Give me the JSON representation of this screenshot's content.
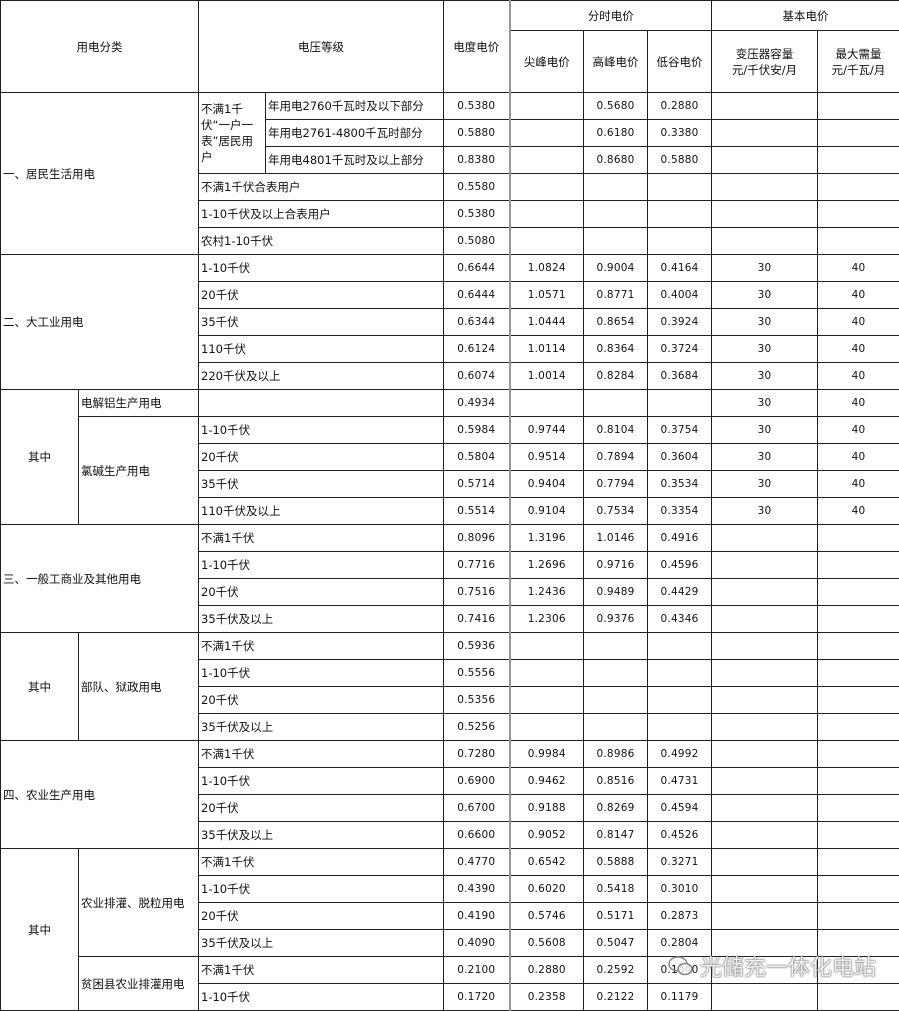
{
  "header": {
    "category": "用电分类",
    "voltage": "电压等级",
    "energy_price": "电度电价",
    "tou_price": "分时电价",
    "sharp_peak": "尖峰电价",
    "peak": "高峰电价",
    "valley": "低谷电价",
    "basic_price": "基本电价",
    "capacity_line1": "变压器容量",
    "capacity_line2": "元/千伏安/月",
    "demand_line1": "最大需量",
    "demand_line2": "元/千瓦/月"
  },
  "groups": [
    {
      "type": "main",
      "label": "一、居民生活用电",
      "parts": [
        {
          "label": "不满1千伏“一户一表”居民用户",
          "rows": [
            {
              "voltage": "年用电2760千瓦时及以下部分",
              "energy": "0.5380",
              "sharp": "",
              "peak": "0.5680",
              "valley": "0.2880",
              "capacity": "",
              "demand": ""
            },
            {
              "voltage": "年用电2761-4800千瓦时部分",
              "energy": "0.5880",
              "sharp": "",
              "peak": "0.6180",
              "valley": "0.3380",
              "capacity": "",
              "demand": ""
            },
            {
              "voltage": "年用电4801千瓦时及以上部分",
              "energy": "0.8380",
              "sharp": "",
              "peak": "0.8680",
              "valley": "0.5880",
              "capacity": "",
              "demand": ""
            }
          ]
        },
        {
          "rows": [
            {
              "voltage": "不满1千伏合表用户",
              "energy": "0.5580",
              "sharp": "",
              "peak": "",
              "valley": "",
              "capacity": "",
              "demand": ""
            }
          ]
        },
        {
          "rows": [
            {
              "voltage": "1-10千伏及以上合表用户",
              "energy": "0.5380",
              "sharp": "",
              "peak": "",
              "valley": "",
              "capacity": "",
              "demand": ""
            }
          ]
        },
        {
          "rows": [
            {
              "voltage": "农村1-10千伏",
              "energy": "0.5080",
              "sharp": "",
              "peak": "",
              "valley": "",
              "capacity": "",
              "demand": ""
            }
          ]
        }
      ]
    },
    {
      "type": "main",
      "label": "二、大工业用电",
      "parts": [
        {
          "rows": [
            {
              "voltage": "1-10千伏",
              "energy": "0.6644",
              "sharp": "1.0824",
              "peak": "0.9004",
              "valley": "0.4164",
              "capacity": "30",
              "demand": "40"
            },
            {
              "voltage": "20千伏",
              "energy": "0.6444",
              "sharp": "1.0571",
              "peak": "0.8771",
              "valley": "0.4004",
              "capacity": "30",
              "demand": "40"
            },
            {
              "voltage": "35千伏",
              "energy": "0.6344",
              "sharp": "1.0444",
              "peak": "0.8654",
              "valley": "0.3924",
              "capacity": "30",
              "demand": "40"
            },
            {
              "voltage": "110千伏",
              "energy": "0.6124",
              "sharp": "1.0114",
              "peak": "0.8364",
              "valley": "0.3724",
              "capacity": "30",
              "demand": "40"
            },
            {
              "voltage": "220千伏及以上",
              "energy": "0.6074",
              "sharp": "1.0014",
              "peak": "0.8284",
              "valley": "0.3684",
              "capacity": "30",
              "demand": "40"
            }
          ]
        }
      ]
    },
    {
      "type": "sub",
      "label": "其中",
      "parts": [
        {
          "label": "电解铝生产用电",
          "rows": [
            {
              "voltage": "",
              "energy": "0.4934",
              "sharp": "",
              "peak": "",
              "valley": "",
              "capacity": "30",
              "demand": "40"
            }
          ]
        },
        {
          "label": "氯碱生产用电",
          "rows": [
            {
              "voltage": "1-10千伏",
              "energy": "0.5984",
              "sharp": "0.9744",
              "peak": "0.8104",
              "valley": "0.3754",
              "capacity": "30",
              "demand": "40"
            },
            {
              "voltage": "20千伏",
              "energy": "0.5804",
              "sharp": "0.9514",
              "peak": "0.7894",
              "valley": "0.3604",
              "capacity": "30",
              "demand": "40"
            },
            {
              "voltage": "35千伏",
              "energy": "0.5714",
              "sharp": "0.9404",
              "peak": "0.7794",
              "valley": "0.3534",
              "capacity": "30",
              "demand": "40"
            },
            {
              "voltage": "110千伏及以上",
              "energy": "0.5514",
              "sharp": "0.9104",
              "peak": "0.7534",
              "valley": "0.3354",
              "capacity": "30",
              "demand": "40"
            }
          ]
        }
      ]
    },
    {
      "type": "main",
      "label": "三、一般工商业及其他用电",
      "parts": [
        {
          "rows": [
            {
              "voltage": "不满1千伏",
              "energy": "0.8096",
              "sharp": "1.3196",
              "peak": "1.0146",
              "valley": "0.4916",
              "capacity": "",
              "demand": ""
            },
            {
              "voltage": "1-10千伏",
              "energy": "0.7716",
              "sharp": "1.2696",
              "peak": "0.9716",
              "valley": "0.4596",
              "capacity": "",
              "demand": ""
            },
            {
              "voltage": "20千伏",
              "energy": "0.7516",
              "sharp": "1.2436",
              "peak": "0.9489",
              "valley": "0.4429",
              "capacity": "",
              "demand": ""
            },
            {
              "voltage": "35千伏及以上",
              "energy": "0.7416",
              "sharp": "1.2306",
              "peak": "0.9376",
              "valley": "0.4346",
              "capacity": "",
              "demand": ""
            }
          ]
        }
      ]
    },
    {
      "type": "sub",
      "label": "其中",
      "parts": [
        {
          "label": "部队、狱政用电",
          "rows": [
            {
              "voltage": "不满1千伏",
              "energy": "0.5936",
              "sharp": "",
              "peak": "",
              "valley": "",
              "capacity": "",
              "demand": ""
            },
            {
              "voltage": "1-10千伏",
              "energy": "0.5556",
              "sharp": "",
              "peak": "",
              "valley": "",
              "capacity": "",
              "demand": ""
            },
            {
              "voltage": "20千伏",
              "energy": "0.5356",
              "sharp": "",
              "peak": "",
              "valley": "",
              "capacity": "",
              "demand": ""
            },
            {
              "voltage": "35千伏及以上",
              "energy": "0.5256",
              "sharp": "",
              "peak": "",
              "valley": "",
              "capacity": "",
              "demand": ""
            }
          ]
        }
      ]
    },
    {
      "type": "main",
      "label": "四、农业生产用电",
      "parts": [
        {
          "rows": [
            {
              "voltage": "不满1千伏",
              "energy": "0.7280",
              "sharp": "0.9984",
              "peak": "0.8986",
              "valley": "0.4992",
              "capacity": "",
              "demand": ""
            },
            {
              "voltage": "1-10千伏",
              "energy": "0.6900",
              "sharp": "0.9462",
              "peak": "0.8516",
              "valley": "0.4731",
              "capacity": "",
              "demand": ""
            },
            {
              "voltage": "20千伏",
              "energy": "0.6700",
              "sharp": "0.9188",
              "peak": "0.8269",
              "valley": "0.4594",
              "capacity": "",
              "demand": ""
            },
            {
              "voltage": "35千伏及以上",
              "energy": "0.6600",
              "sharp": "0.9052",
              "peak": "0.8147",
              "valley": "0.4526",
              "capacity": "",
              "demand": ""
            }
          ]
        }
      ]
    },
    {
      "type": "sub",
      "label": "其中",
      "parts": [
        {
          "label": "农业排灌、脱粒用电",
          "rows": [
            {
              "voltage": "不满1千伏",
              "energy": "0.4770",
              "sharp": "0.6542",
              "peak": "0.5888",
              "valley": "0.3271",
              "capacity": "",
              "demand": ""
            },
            {
              "voltage": "1-10千伏",
              "energy": "0.4390",
              "sharp": "0.6020",
              "peak": "0.5418",
              "valley": "0.3010",
              "capacity": "",
              "demand": ""
            },
            {
              "voltage": "20千伏",
              "energy": "0.4190",
              "sharp": "0.5746",
              "peak": "0.5171",
              "valley": "0.2873",
              "capacity": "",
              "demand": ""
            },
            {
              "voltage": "35千伏及以上",
              "energy": "0.4090",
              "sharp": "0.5608",
              "peak": "0.5047",
              "valley": "0.2804",
              "capacity": "",
              "demand": ""
            }
          ]
        },
        {
          "label": "贫困县农业排灌用电",
          "rows": [
            {
              "voltage": "不满1千伏",
              "energy": "0.2100",
              "sharp": "0.2880",
              "peak": "0.2592",
              "valley": "0.1440",
              "capacity": "",
              "demand": ""
            },
            {
              "voltage": "1-10千伏",
              "energy": "0.1720",
              "sharp": "0.2358",
              "peak": "0.2122",
              "valley": "0.1179",
              "capacity": "",
              "demand": ""
            }
          ]
        }
      ]
    }
  ],
  "watermark": {
    "text": "光储充一体化电站",
    "icon": "wechat-icon"
  }
}
